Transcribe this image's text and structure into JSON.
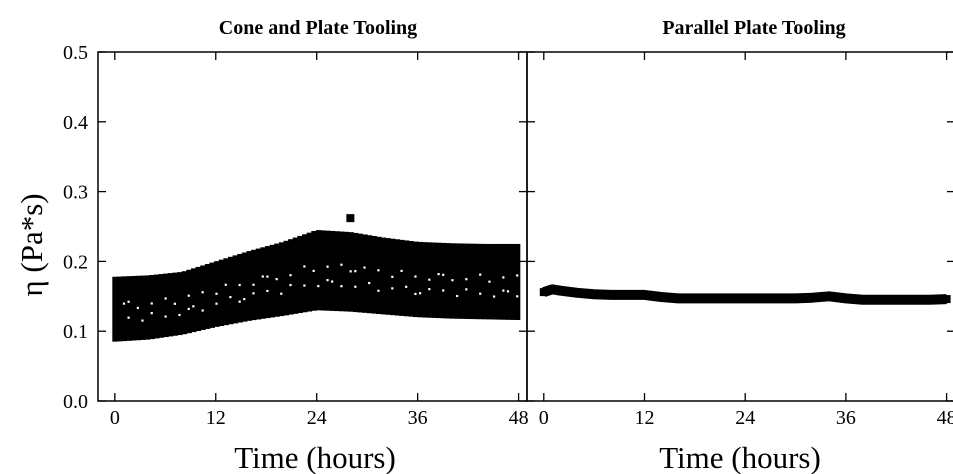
{
  "chart_data": [
    {
      "type": "scatter",
      "title": "Cone and Plate Tooling",
      "xlabel": "Time (hours)",
      "ylabel": "η (Pa*s)",
      "xlim": [
        -2,
        49
      ],
      "ylim": [
        0,
        0.5
      ],
      "xticks": [
        0,
        12,
        24,
        36,
        48
      ],
      "yticks": [
        0.0,
        0.1,
        0.2,
        0.3,
        0.4,
        0.5
      ],
      "xtick_labels": [
        "0",
        "12",
        "24",
        "36",
        "48"
      ],
      "ytick_labels": [
        "0.0",
        "0.1",
        "0.2",
        "0.3",
        "0.4",
        "0.5"
      ],
      "grid": false,
      "series": [
        {
          "x": [
            0,
            4,
            8,
            12,
            16,
            20,
            24,
            28,
            32,
            36,
            40,
            44,
            48
          ],
          "y_low": [
            0.085,
            0.088,
            0.095,
            0.106,
            0.115,
            0.122,
            0.13,
            0.128,
            0.124,
            0.12,
            0.118,
            0.117,
            0.116
          ],
          "y_high": [
            0.178,
            0.18,
            0.185,
            0.2,
            0.215,
            0.228,
            0.245,
            0.242,
            0.234,
            0.228,
            0.226,
            0.225,
            0.225
          ]
        }
      ],
      "outlier": {
        "x": 28,
        "y": 0.262
      }
    },
    {
      "type": "scatter",
      "title": "Parallel Plate Tooling",
      "xlabel": "Time (hours)",
      "ylabel": "",
      "xlim": [
        -2,
        49
      ],
      "ylim": [
        0,
        0.5
      ],
      "xticks": [
        0,
        12,
        24,
        36,
        48
      ],
      "xtick_labels": [
        "0",
        "12",
        "24",
        "36",
        "48"
      ],
      "grid": false,
      "series": [
        {
          "x": [
            0,
            1,
            2,
            4,
            6,
            8,
            10,
            12,
            14,
            16,
            18,
            20,
            22,
            24,
            26,
            28,
            30,
            32,
            34,
            36,
            38,
            40,
            42,
            44,
            46,
            48
          ],
          "y": [
            0.156,
            0.16,
            0.158,
            0.155,
            0.153,
            0.152,
            0.152,
            0.152,
            0.149,
            0.147,
            0.147,
            0.147,
            0.147,
            0.147,
            0.147,
            0.147,
            0.147,
            0.148,
            0.15,
            0.147,
            0.145,
            0.145,
            0.145,
            0.145,
            0.145,
            0.146
          ]
        }
      ]
    }
  ]
}
